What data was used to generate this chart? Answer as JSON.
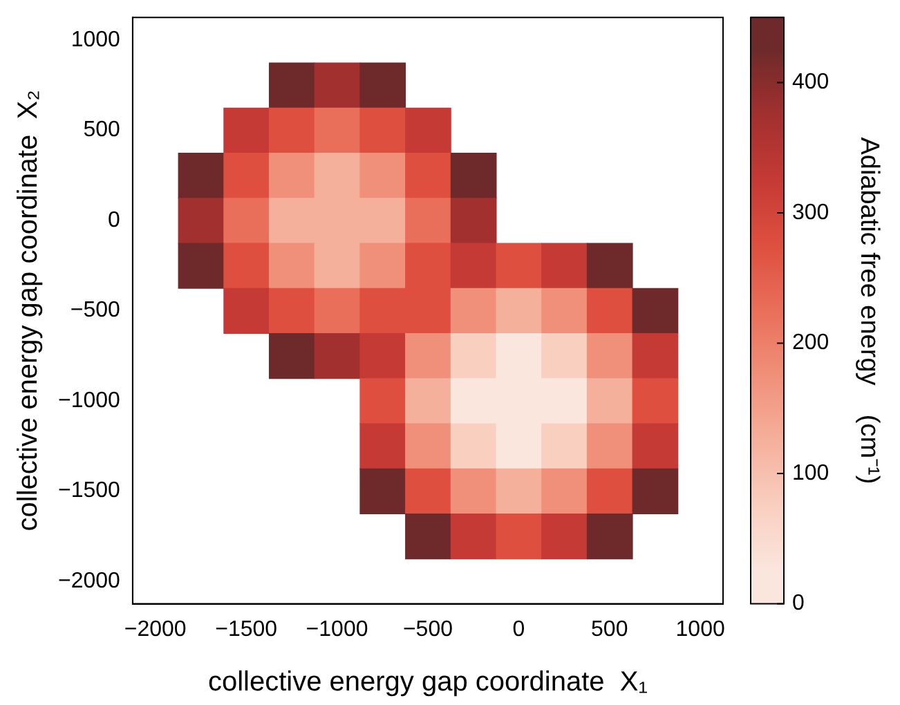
{
  "chart_data": {
    "type": "heatmap",
    "xlabel": "collective energy gap coordinate  X₁",
    "ylabel": "collective energy gap coordinate  X₂",
    "clabel": "Adiabatic free energy    (cm⁻¹)",
    "categories": [
      "−2000",
      null,
      "−1500",
      null,
      "−1000",
      null,
      "−500",
      null,
      "0",
      null,
      "500",
      null,
      "1000"
    ],
    "y_categories": [
      "1000",
      null,
      "500",
      null,
      "0",
      null,
      "−500",
      null,
      "−1000",
      null,
      "−1500",
      null,
      "−2000"
    ],
    "cells": [
      [
        null,
        null,
        null,
        null,
        null,
        null,
        null,
        null,
        null,
        null,
        null,
        null,
        null
      ],
      [
        null,
        null,
        null,
        425,
        375,
        425,
        null,
        null,
        null,
        null,
        null,
        null,
        null
      ],
      [
        null,
        null,
        325,
        275,
        225,
        275,
        325,
        null,
        null,
        null,
        null,
        null,
        null
      ],
      [
        null,
        425,
        275,
        175,
        125,
        175,
        275,
        425,
        null,
        null,
        null,
        null,
        null
      ],
      [
        null,
        375,
        225,
        125,
        125,
        125,
        225,
        375,
        null,
        null,
        null,
        null,
        null
      ],
      [
        null,
        425,
        275,
        175,
        125,
        175,
        275,
        325,
        275,
        325,
        425,
        null,
        null
      ],
      [
        null,
        null,
        325,
        275,
        225,
        275,
        275,
        175,
        125,
        175,
        275,
        425,
        null
      ],
      [
        null,
        null,
        null,
        425,
        375,
        325,
        175,
        75,
        25,
        75,
        175,
        325,
        null
      ],
      [
        null,
        null,
        null,
        null,
        null,
        275,
        125,
        25,
        25,
        25,
        125,
        275,
        null
      ],
      [
        null,
        null,
        null,
        null,
        null,
        325,
        175,
        75,
        25,
        75,
        175,
        325,
        null
      ],
      [
        null,
        null,
        null,
        null,
        null,
        425,
        275,
        175,
        125,
        175,
        275,
        425,
        null
      ],
      [
        null,
        null,
        null,
        null,
        null,
        null,
        425,
        325,
        275,
        325,
        425,
        null,
        null
      ],
      [
        null,
        null,
        null,
        null,
        null,
        null,
        null,
        null,
        null,
        null,
        null,
        null,
        null
      ]
    ],
    "colors": [
      "#fbe6de",
      "#f9cfc0",
      "#f5b09c",
      "#f0907a",
      "#e96f5a",
      "#de4f3f",
      "#c53a35",
      "#a2302f",
      "#6e2a2a"
    ],
    "clim": [
      0,
      450
    ],
    "cticks": [
      0,
      100,
      200,
      300,
      400
    ]
  }
}
